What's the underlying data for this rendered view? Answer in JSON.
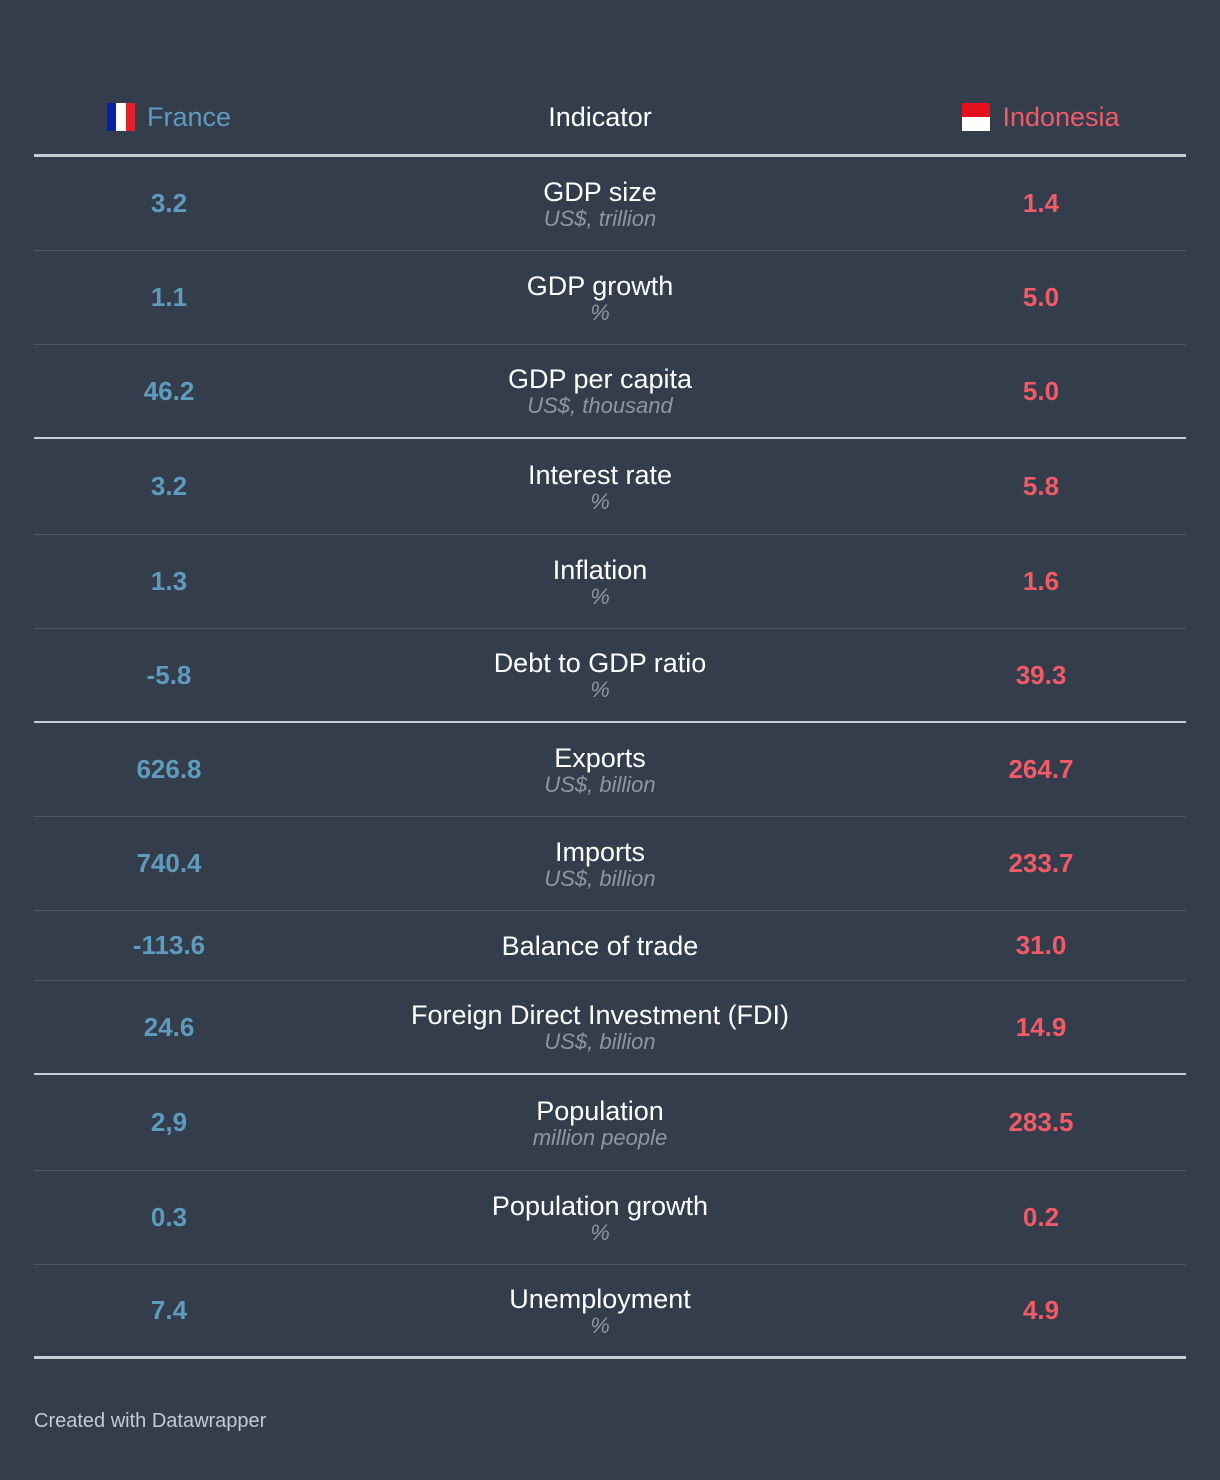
{
  "header": {
    "left_label": "France",
    "mid_label": "Indicator",
    "right_label": "Indonesia",
    "left_flag_icon": "france-flag-icon",
    "right_flag_icon": "indonesia-flag-icon"
  },
  "colors": {
    "france": "#5f9bbd",
    "indonesia": "#f25a67",
    "background": "#333d4c",
    "unit": "#8e96a1"
  },
  "chart_data": {
    "type": "table",
    "columns": [
      "France",
      "Indicator",
      "Indonesia"
    ],
    "rows": [
      {
        "france": "3.2",
        "indicator": "GDP size",
        "unit": "US$, trillion",
        "indonesia": "1.4"
      },
      {
        "france": "1.1",
        "indicator": "GDP growth",
        "unit": "%",
        "indonesia": "5.0"
      },
      {
        "france": "46.2",
        "indicator": "GDP per capita",
        "unit": "US$, thousand",
        "indonesia": "5.0"
      },
      {
        "france": "3.2",
        "indicator": "Interest rate",
        "unit": "%",
        "indonesia": "5.8"
      },
      {
        "france": "1.3",
        "indicator": "Inflation",
        "unit": "%",
        "indonesia": "1.6"
      },
      {
        "france": "-5.8",
        "indicator": "Debt to GDP ratio",
        "unit": "%",
        "indonesia": "39.3"
      },
      {
        "france": "626.8",
        "indicator": "Exports",
        "unit": "US$, billion",
        "indonesia": "264.7"
      },
      {
        "france": "740.4",
        "indicator": "Imports",
        "unit": "US$, billion",
        "indonesia": "233.7"
      },
      {
        "france": "-113.6",
        "indicator": "Balance of trade",
        "unit": "",
        "indonesia": "31.0"
      },
      {
        "france": "24.6",
        "indicator": "Foreign Direct Investment (FDI)",
        "unit": "US$, billion",
        "indonesia": "14.9"
      },
      {
        "france": "2,9",
        "indicator": "Population",
        "unit": "million people",
        "indonesia": "283.5"
      },
      {
        "france": "0.3",
        "indicator": "Population growth",
        "unit": "%",
        "indonesia": "0.2"
      },
      {
        "france": "7.4",
        "indicator": "Unemployment",
        "unit": "%",
        "indonesia": "4.9"
      }
    ]
  },
  "footer": {
    "credit": "Created with Datawrapper"
  }
}
